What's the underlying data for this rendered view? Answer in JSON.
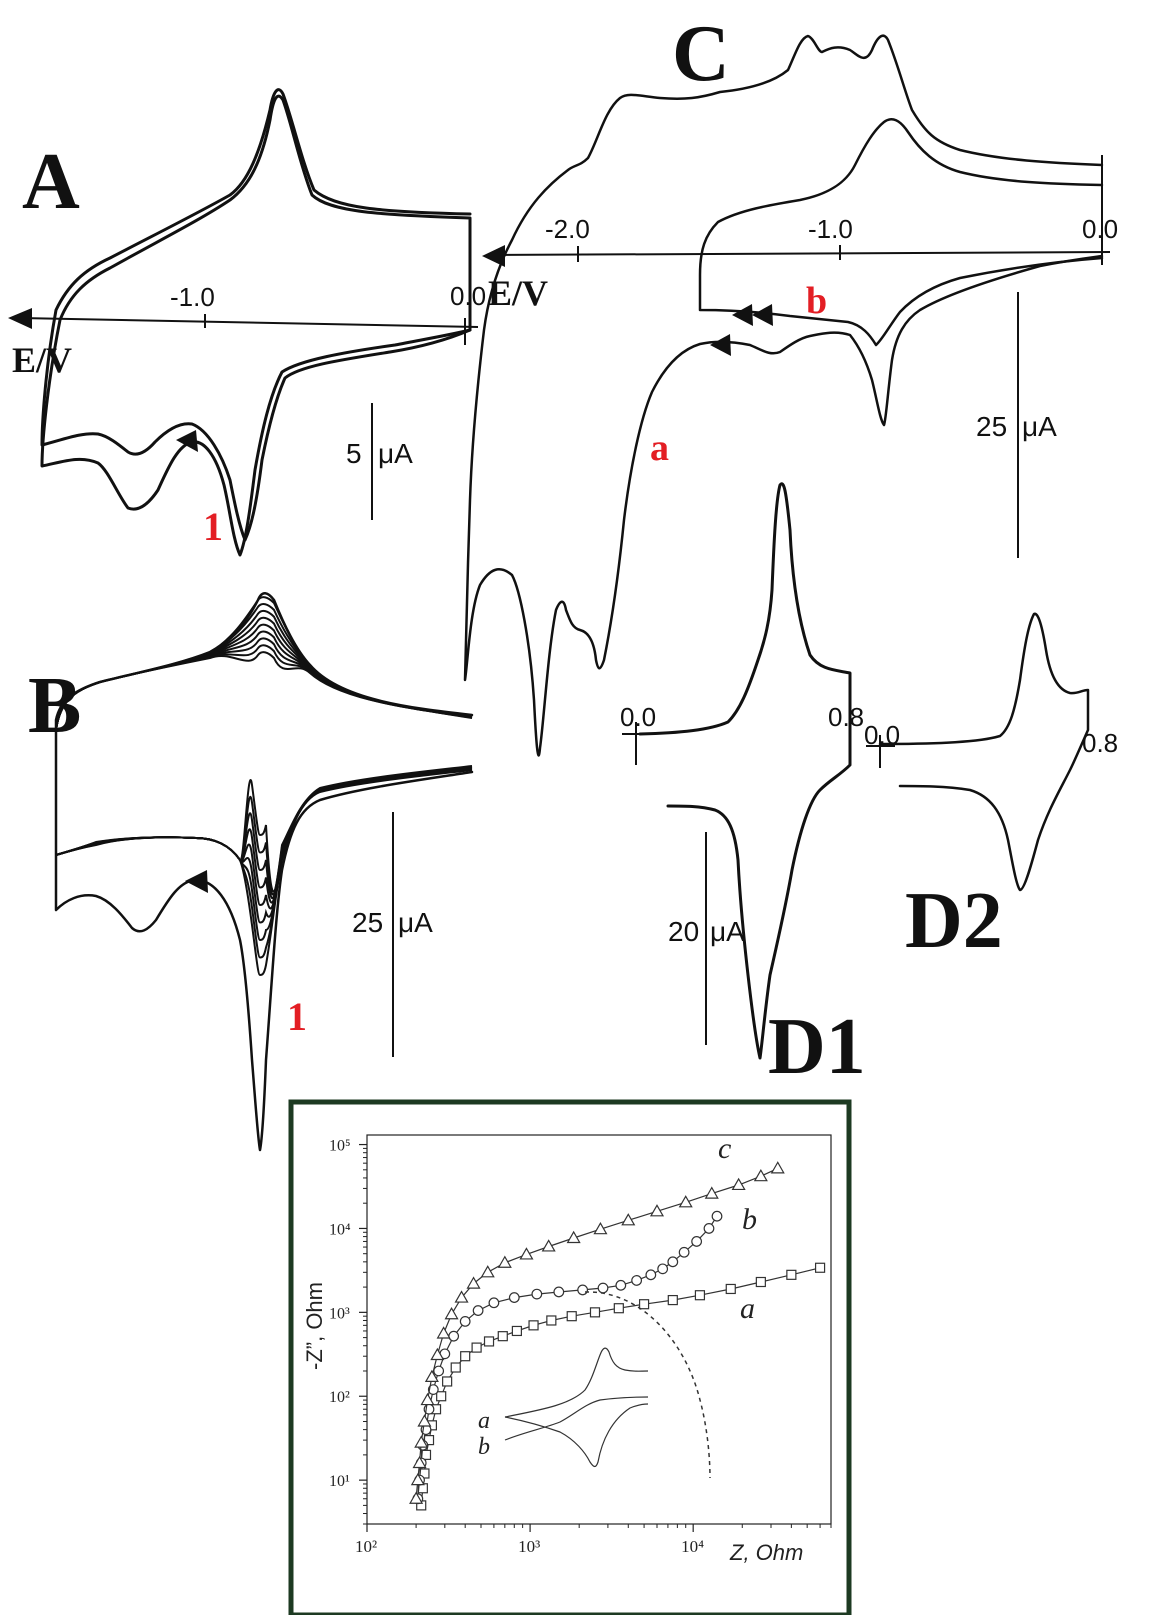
{
  "panels": {
    "A": {
      "letter": "A",
      "xtick_minus1": "-1.0",
      "xtick_0": "0.0",
      "xlabel": "E/V",
      "scale": "5",
      "scale_unit": "μA",
      "curve_label": "1"
    },
    "B": {
      "letter": "B",
      "scale": "25",
      "scale_unit": "μA",
      "curve_label": "1"
    },
    "C": {
      "letter": "C",
      "xtick_minus2": "-2.0",
      "xtick_minus1": "-1.0",
      "xtick_0": "0.0",
      "xlabel": "E/V",
      "label_a": "a",
      "label_b": "b",
      "scale": "25",
      "scale_unit": "μA"
    },
    "D1": {
      "letter": "D1",
      "xtick_0": "0.0",
      "xtick_08": "0.8",
      "scale": "20",
      "scale_unit": "μA"
    },
    "D2": {
      "letter": "D2",
      "xtick_0": "0.0",
      "xtick_08": "0.8"
    }
  },
  "chart_data": [
    {
      "panel": "A",
      "type": "line",
      "xlabel": "E/V",
      "x_ticks": [
        "-1.0",
        "0.0"
      ],
      "series": [
        {
          "name": "1",
          "x": [
            0.0,
            -0.2,
            -0.4,
            -0.6,
            -0.7,
            -0.8,
            -1.0,
            -1.2,
            -1.4,
            -1.6,
            -1.7,
            -1.6,
            -1.4,
            -1.2,
            -1.0,
            -0.8,
            -0.75,
            -0.6,
            -0.4,
            -0.2,
            0.0
          ],
          "y": [
            0.2,
            0.2,
            -0.3,
            -1.2,
            -2.8,
            -3.8,
            -3.2,
            -3.0,
            -3.5,
            -3.0,
            1.0,
            2.5,
            3.3,
            4.5,
            6.0,
            8.5,
            9.4,
            7.0,
            5.0,
            4.8,
            4.7
          ]
        }
      ]
    },
    {
      "panel": "B",
      "type": "line",
      "series": [
        {
          "name": "1",
          "x": [
            0.0,
            -0.3,
            -0.5,
            -0.6,
            -0.75,
            -0.9,
            -1.1,
            -1.3,
            -1.5,
            -1.7,
            -1.8,
            -1.7,
            -1.4,
            -1.1,
            -0.9,
            -0.75,
            -0.6,
            -0.3,
            0.0
          ],
          "y": [
            3,
            2.5,
            -5,
            -20,
            -38,
            -6,
            -8,
            -14,
            -7,
            -14,
            -2,
            5,
            10,
            14,
            20,
            26,
            20,
            13,
            12
          ]
        }
      ]
    },
    {
      "panel": "C",
      "type": "line",
      "xlabel": "E/V",
      "x_ticks": [
        "-2.0",
        "-1.0",
        "0.0"
      ],
      "series": [
        {
          "name": "a",
          "x": [
            0.0,
            -0.5,
            -0.8,
            -1.0,
            -1.1,
            -1.2,
            -1.4,
            -1.6,
            -1.8,
            -2.0,
            -2.2,
            -2.35,
            -2.2,
            -2.1,
            -1.9,
            -1.7,
            -1.5,
            -1.3,
            -1.1,
            -1.0,
            -0.9,
            -0.8,
            -0.5,
            0.0
          ],
          "y": [
            -2,
            -3.5,
            -4.5,
            -3.8,
            -5.0,
            -4.2,
            -6.0,
            -12.0,
            -30.0,
            -70.0,
            -45.0,
            -90.0,
            26.0,
            15.0,
            30.0,
            35.0,
            38.0,
            40.0,
            45.0,
            51.0,
            48.0,
            52.0,
            35.0,
            30.0
          ]
        },
        {
          "name": "b",
          "x": [
            0.0,
            -0.4,
            -0.7,
            -0.78,
            -0.9,
            -1.2,
            -1.5,
            -1.5,
            -1.3,
            -1.0,
            -0.78,
            -0.6,
            -0.3,
            0.0
          ],
          "y": [
            -1,
            -3,
            -10,
            -20,
            -8,
            -8,
            -8,
            2,
            6,
            12,
            16,
            10,
            5,
            4
          ]
        }
      ]
    },
    {
      "panel": "D1",
      "type": "line",
      "x_ticks": [
        "0.0",
        "0.8"
      ],
      "series": [
        {
          "name": "",
          "x": [
            0.0,
            0.2,
            0.4,
            0.5,
            0.55,
            0.58,
            0.62,
            0.7,
            0.8,
            0.82,
            0.75,
            0.6,
            0.55,
            0.52,
            0.5,
            0.45,
            0.3,
            0.15
          ],
          "y": [
            0.5,
            1,
            3,
            12,
            22,
            46,
            24,
            10,
            10,
            -10,
            -12,
            -25,
            -45,
            -62,
            -55,
            -35,
            -15,
            -12
          ]
        }
      ]
    },
    {
      "panel": "D2",
      "type": "line",
      "x_ticks": [
        "0.0",
        "0.8"
      ],
      "series": [
        {
          "name": "",
          "x": [
            0.0,
            0.3,
            0.5,
            0.6,
            0.65,
            0.7,
            0.8,
            0.8,
            0.7,
            0.55,
            0.5,
            0.45,
            0.3,
            0.1
          ],
          "y": [
            0,
            0.5,
            2,
            5,
            14,
            6,
            4,
            -2,
            -6,
            -15,
            -20,
            -12,
            -4,
            -3
          ]
        }
      ]
    },
    {
      "panel": "inset",
      "type": "scatter",
      "xlabel": "Z, Ohm",
      "ylabel": "-Z”, Ohm",
      "x_scale": "log",
      "y_scale": "log",
      "xlim": [
        100,
        70000
      ],
      "ylim": [
        3,
        130000
      ],
      "x_ticks": [
        "10²",
        "10³",
        "10⁴"
      ],
      "y_ticks": [
        "10¹",
        "10²",
        "10³",
        "10⁴",
        "10⁵"
      ],
      "cv_inset_labels": [
        "a",
        "b"
      ],
      "series": [
        {
          "name": "a",
          "marker": "square",
          "x": [
            215,
            220,
            225,
            230,
            240,
            250,
            265,
            285,
            310,
            350,
            400,
            470,
            560,
            680,
            830,
            1050,
            1350,
            1800,
            2500,
            3500,
            5000,
            7500,
            11000,
            17000,
            26000,
            40000,
            60000
          ],
          "y": [
            5,
            8,
            12,
            20,
            30,
            45,
            70,
            100,
            150,
            220,
            300,
            380,
            450,
            520,
            600,
            700,
            800,
            900,
            1000,
            1120,
            1250,
            1400,
            1600,
            1900,
            2300,
            2800,
            3400
          ]
        },
        {
          "name": "b",
          "marker": "circle",
          "x": [
            205,
            210,
            215,
            220,
            230,
            240,
            255,
            275,
            300,
            340,
            400,
            480,
            600,
            800,
            1100,
            1500,
            2100,
            2800,
            3600,
            4500,
            5500,
            6500,
            7500,
            8800,
            10500,
            12500,
            14000
          ],
          "y": [
            6,
            10,
            16,
            26,
            40,
            70,
            120,
            200,
            320,
            520,
            780,
            1050,
            1300,
            1500,
            1650,
            1750,
            1850,
            1950,
            2100,
            2400,
            2800,
            3300,
            4000,
            5200,
            7000,
            10000,
            14000
          ]
        },
        {
          "name": "c",
          "marker": "triangle",
          "x": [
            200,
            205,
            210,
            215,
            225,
            235,
            250,
            270,
            295,
            330,
            380,
            450,
            550,
            700,
            950,
            1300,
            1850,
            2700,
            4000,
            6000,
            9000,
            13000,
            19000,
            26000,
            33000
          ],
          "y": [
            6,
            10,
            16,
            28,
            50,
            90,
            170,
            310,
            560,
            950,
            1500,
            2200,
            3000,
            3900,
            4900,
            6100,
            7700,
            9800,
            12500,
            16000,
            20500,
            26000,
            33000,
            42000,
            52000
          ]
        }
      ]
    }
  ]
}
